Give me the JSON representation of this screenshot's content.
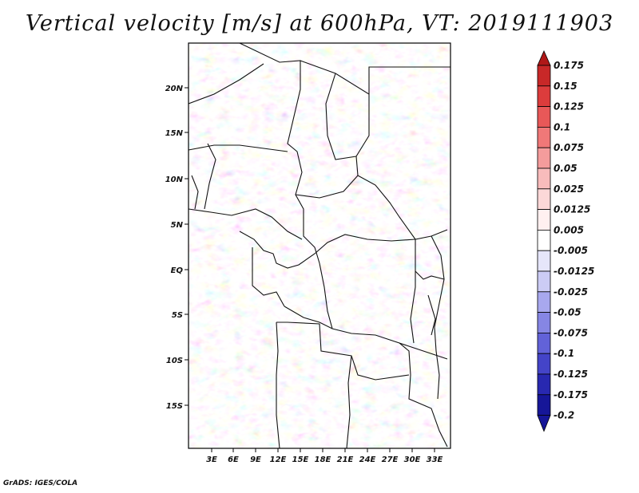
{
  "title": "Vertical velocity [m/s] at 600hPa, VT: 2019111903",
  "credit": "GrADS: IGES/COLA",
  "map": {
    "lat_labels": [
      "20N",
      "15N",
      "10N",
      "5N",
      "EQ",
      "5S",
      "10S",
      "15S"
    ],
    "lon_labels": [
      "3E",
      "6E",
      "9E",
      "12E",
      "15E",
      "18E",
      "21E",
      "24E",
      "27E",
      "30E",
      "33E"
    ]
  },
  "colorbar": {
    "labels": [
      "0.175",
      "0.15",
      "0.125",
      "0.1",
      "0.075",
      "0.05",
      "0.025",
      "0.0125",
      "0.005",
      "-0.005",
      "-0.0125",
      "-0.025",
      "-0.05",
      "-0.075",
      "-0.1",
      "-0.125",
      "-0.175",
      "-0.2"
    ],
    "colors": [
      "#b01818",
      "#c82828",
      "#dc3c3c",
      "#e85858",
      "#f07878",
      "#f49c9c",
      "#f8bcbc",
      "#fcd8d8",
      "#fff0f0",
      "#ffffff",
      "#e6e6fa",
      "#ccccf5",
      "#a8a8ee",
      "#8686e4",
      "#6262d8",
      "#4444c8",
      "#2828b0",
      "#161698"
    ]
  }
}
